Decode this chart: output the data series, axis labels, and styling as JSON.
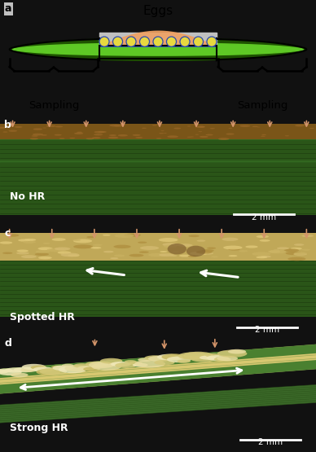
{
  "fig_width": 3.88,
  "fig_height": 5.55,
  "dpi": 100,
  "panel_a": {
    "bg_color": "#c0c0c0",
    "label": "a",
    "title": "Eggs",
    "sampling_label": "Sampling"
  },
  "panel_b": {
    "label": "b",
    "bg_color": "#0a0a0a",
    "needle_color": "#2d5c1e",
    "egg_strip_color": "#8b6520",
    "label_text": "No HR",
    "scale_text": "2 mm",
    "arrow_color": "#d4956a",
    "num_arrows": 9
  },
  "panel_c": {
    "label": "c",
    "bg_color": "#0a0a0a",
    "needle_color": "#2d5c1e",
    "egg_strip_color": "#c8b870",
    "label_text": "Spotted HR",
    "scale_text": "2 mm",
    "arrow_color": "#d4956a",
    "num_arrows": 8
  },
  "panel_d": {
    "label": "d",
    "bg_color": "#0a0a0a",
    "needle_color": "#3a6e28",
    "egg_strip_color": "#d4c888",
    "label_text": "Strong HR",
    "scale_text": "2 mm",
    "arrow_color": "#d4956a",
    "num_arrows": 3
  }
}
